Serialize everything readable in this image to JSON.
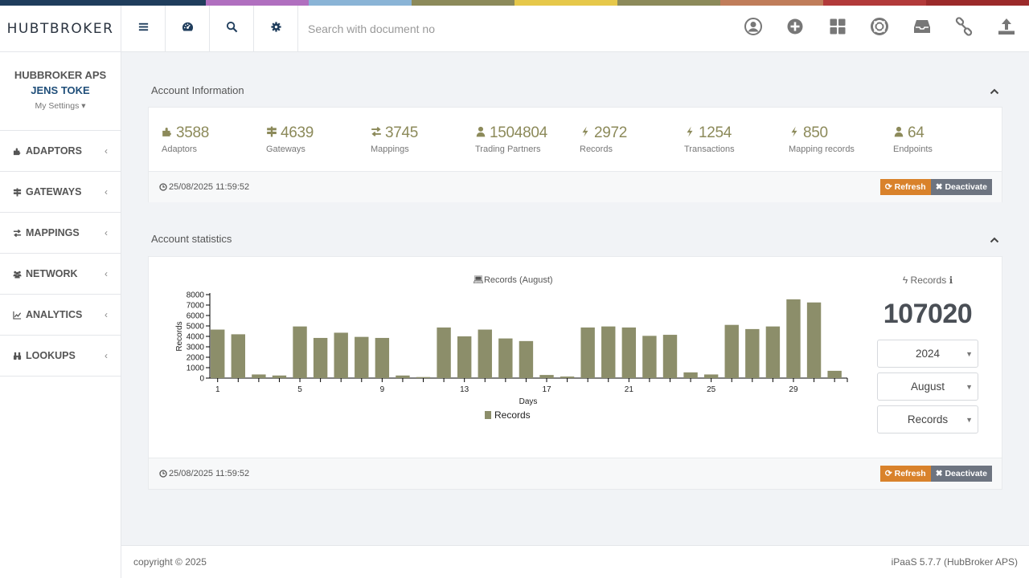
{
  "colors": {
    "strip": [
      "#1f3d5c",
      "#1f3d5c",
      "#b06fbf",
      "#8ab4d6",
      "#8c8a5a",
      "#e6c84a",
      "#8c8a5a",
      "#c07d5a",
      "#b23a3a",
      "#9b2a2a"
    ],
    "accent": "#8c8a5a",
    "brand": "#1f3d5c"
  },
  "header": {
    "logo": "HUBTBROKER",
    "search_placeholder": "Search with document no",
    "icons": [
      "user-circle-icon",
      "plus-circle-icon",
      "grid-icon",
      "life-ring-icon",
      "inbox-icon",
      "link-icon",
      "upload-icon"
    ]
  },
  "sidebar": {
    "company": "HUBBROKER APS",
    "user": "JENS TOKE",
    "settings_label": "My Settings ▾",
    "items": [
      {
        "label": "ADAPTORS",
        "icon": "puzzle-icon"
      },
      {
        "label": "GATEWAYS",
        "icon": "signpost-icon"
      },
      {
        "label": "MAPPINGS",
        "icon": "exchange-icon"
      },
      {
        "label": "NETWORK",
        "icon": "users-icon"
      },
      {
        "label": "ANALYTICS",
        "icon": "line-chart-icon"
      },
      {
        "label": "LOOKUPS",
        "icon": "binoculars-icon"
      }
    ]
  },
  "account_info": {
    "title": "Account Information",
    "stats": [
      {
        "value": "3588",
        "label": "Adaptors",
        "icon": "puzzle-icon"
      },
      {
        "value": "4639",
        "label": "Gateways",
        "icon": "signpost-icon"
      },
      {
        "value": "3745",
        "label": "Mappings",
        "icon": "exchange-icon"
      },
      {
        "value": "1504804",
        "label": "Trading Partners",
        "icon": "user-icon"
      },
      {
        "value": "2972",
        "label": "Records",
        "icon": "bolt-icon"
      },
      {
        "value": "1254",
        "label": "Transactions",
        "icon": "bolt-icon"
      },
      {
        "value": "850",
        "label": "Mapping records",
        "icon": "bolt-icon"
      },
      {
        "value": "64",
        "label": "Endpoints",
        "icon": "user-icon"
      }
    ],
    "timestamp": "25/08/2025 11:59:52",
    "refresh_label": "Refresh",
    "deactivate_label": "Deactivate"
  },
  "account_stats": {
    "title": "Account statistics",
    "side_label": "Records",
    "total": "107020",
    "year": "2024",
    "month": "August",
    "metric": "Records",
    "timestamp": "25/08/2025 11:59:52",
    "refresh_label": "Refresh",
    "deactivate_label": "Deactivate"
  },
  "chart_data": {
    "type": "bar",
    "title": "Records (August)",
    "xlabel": "Days",
    "ylabel": "Records",
    "ylim": [
      0,
      8000
    ],
    "yticks": [
      0,
      1000,
      2000,
      3000,
      4000,
      5000,
      6000,
      7000,
      8000
    ],
    "xtick_labels": [
      "1",
      "5",
      "9",
      "13",
      "17",
      "21",
      "25",
      "29"
    ],
    "legend_position": "bottom",
    "categories": [
      1,
      2,
      3,
      4,
      5,
      6,
      7,
      8,
      9,
      10,
      11,
      12,
      13,
      14,
      15,
      16,
      17,
      18,
      19,
      20,
      21,
      22,
      23,
      24,
      25,
      26,
      27,
      28,
      29,
      30,
      31
    ],
    "series": [
      {
        "name": "Records",
        "color": "#8c8e6a",
        "values": [
          4650,
          4200,
          350,
          250,
          4950,
          3850,
          4350,
          3950,
          3850,
          250,
          100,
          4850,
          4000,
          4650,
          3800,
          3550,
          300,
          150,
          4850,
          4950,
          4850,
          4050,
          4150,
          550,
          350,
          5100,
          4700,
          4950,
          7550,
          7250,
          700
        ]
      }
    ]
  },
  "footer": {
    "copyright": "copyright © 2025",
    "version": "iPaaS 5.7.7 (HubBroker APS)"
  }
}
